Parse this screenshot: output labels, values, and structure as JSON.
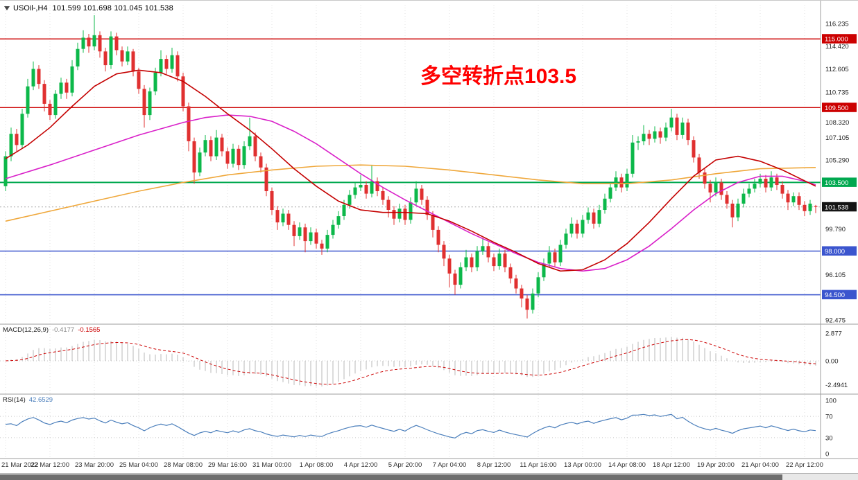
{
  "header": {
    "symbol_period": "USOil-,H4",
    "ohlc_text": "101.599 101.698 101.045 101.538"
  },
  "annotation": {
    "text": "多空转折点103.5",
    "color": "#ff0000"
  },
  "chart_data": {
    "type": "candlestick",
    "symbol": "USOil-",
    "timeframe": "H4",
    "bars_per_label": 8,
    "x_labels": [
      "21 Mar 2022",
      "22 Mar 12:00",
      "23 Mar 20:00",
      "25 Mar 04:00",
      "28 Mar 08:00",
      "29 Mar 16:00",
      "31 Mar 00:00",
      "1 Apr 08:00",
      "4 Apr 12:00",
      "5 Apr 20:00",
      "7 Apr 04:00",
      "8 Apr 12:00",
      "11 Apr 16:00",
      "13 Apr 00:00",
      "14 Apr 08:00",
      "18 Apr 12:00",
      "19 Apr 20:00",
      "21 Apr 04:00",
      "22 Apr 12:00"
    ],
    "up_color": "#0cb84a",
    "down_color": "#e03030",
    "levels": [
      {
        "price": 115.0,
        "color": "#cc0000",
        "width": 1.4,
        "style": "solid"
      },
      {
        "price": 109.5,
        "color": "#cc0000",
        "width": 1.4,
        "style": "solid"
      },
      {
        "price": 103.5,
        "color": "#00a84f",
        "width": 2,
        "style": "solid"
      },
      {
        "price": 98.0,
        "color": "#3b55ce",
        "width": 1.6,
        "style": "solid"
      },
      {
        "price": 94.5,
        "color": "#3b55ce",
        "width": 1.6,
        "style": "solid"
      },
      {
        "price": 101.538,
        "color": "#aaaaaa",
        "width": 1,
        "style": "dotted"
      }
    ],
    "y_axis": {
      "plain_labels": [
        "116.235",
        "114.420",
        "112.605",
        "110.735",
        "108.320",
        "107.105",
        "105.290",
        "99.790",
        "96.105",
        "92.475"
      ],
      "badges": [
        {
          "text": "115.000",
          "price": 115.0,
          "color": "#cc0000"
        },
        {
          "text": "109.500",
          "price": 109.5,
          "color": "#cc0000"
        },
        {
          "text": "103.500",
          "price": 103.5,
          "color": "#00a84f"
        },
        {
          "text": "101.538",
          "price": 101.538,
          "color": "#141414"
        },
        {
          "text": "98.000",
          "price": 98.0,
          "color": "#3b55ce"
        },
        {
          "text": "94.500",
          "price": 94.5,
          "color": "#3b55ce"
        }
      ]
    },
    "moving_averages": [
      {
        "name": "ma-slow-orange",
        "color": "#efa73a",
        "points": [
          [
            0,
            100.4
          ],
          [
            8,
            101.2
          ],
          [
            16,
            102.0
          ],
          [
            24,
            102.8
          ],
          [
            32,
            103.5
          ],
          [
            40,
            104.1
          ],
          [
            48,
            104.5
          ],
          [
            56,
            104.8
          ],
          [
            64,
            104.9
          ],
          [
            72,
            104.8
          ],
          [
            80,
            104.5
          ],
          [
            88,
            104.1
          ],
          [
            96,
            103.7
          ],
          [
            104,
            103.4
          ],
          [
            112,
            103.4
          ],
          [
            120,
            103.7
          ],
          [
            128,
            104.2
          ],
          [
            136,
            104.6
          ],
          [
            146,
            104.7
          ]
        ]
      },
      {
        "name": "ma-mid-magenta",
        "color": "#d920c9",
        "points": [
          [
            0,
            103.8
          ],
          [
            8,
            104.9
          ],
          [
            16,
            106.1
          ],
          [
            24,
            107.3
          ],
          [
            32,
            108.3
          ],
          [
            36,
            108.7
          ],
          [
            40,
            108.9
          ],
          [
            44,
            108.8
          ],
          [
            48,
            108.4
          ],
          [
            52,
            107.6
          ],
          [
            56,
            106.6
          ],
          [
            60,
            105.4
          ],
          [
            64,
            104.2
          ],
          [
            68,
            103.1
          ],
          [
            72,
            102.1
          ],
          [
            76,
            101.2
          ],
          [
            80,
            100.3
          ],
          [
            84,
            99.4
          ],
          [
            88,
            98.6
          ],
          [
            92,
            97.8
          ],
          [
            96,
            97.1
          ],
          [
            100,
            96.6
          ],
          [
            104,
            96.4
          ],
          [
            108,
            96.6
          ],
          [
            112,
            97.3
          ],
          [
            116,
            98.4
          ],
          [
            120,
            99.8
          ],
          [
            124,
            101.3
          ],
          [
            128,
            102.6
          ],
          [
            132,
            103.5
          ],
          [
            136,
            104.0
          ],
          [
            140,
            104.0
          ],
          [
            144,
            103.6
          ],
          [
            146,
            103.3
          ]
        ]
      },
      {
        "name": "ma-fast-red",
        "color": "#c40000",
        "points": [
          [
            0,
            105.4
          ],
          [
            4,
            106.5
          ],
          [
            8,
            107.9
          ],
          [
            12,
            109.6
          ],
          [
            16,
            111.2
          ],
          [
            20,
            112.2
          ],
          [
            24,
            112.5
          ],
          [
            28,
            112.3
          ],
          [
            32,
            111.6
          ],
          [
            36,
            110.4
          ],
          [
            40,
            109.0
          ],
          [
            44,
            107.7
          ],
          [
            48,
            106.2
          ],
          [
            52,
            104.6
          ],
          [
            56,
            103.2
          ],
          [
            60,
            102.0
          ],
          [
            64,
            101.3
          ],
          [
            68,
            101.1
          ],
          [
            72,
            101.1
          ],
          [
            76,
            101.0
          ],
          [
            80,
            100.4
          ],
          [
            84,
            99.6
          ],
          [
            88,
            98.7
          ],
          [
            92,
            97.9
          ],
          [
            96,
            97.0
          ],
          [
            100,
            96.4
          ],
          [
            104,
            96.5
          ],
          [
            108,
            97.3
          ],
          [
            112,
            98.6
          ],
          [
            116,
            100.3
          ],
          [
            120,
            102.2
          ],
          [
            124,
            104.0
          ],
          [
            128,
            105.3
          ],
          [
            132,
            105.6
          ],
          [
            136,
            105.2
          ],
          [
            140,
            104.5
          ],
          [
            146,
            103.2
          ]
        ]
      }
    ],
    "candles": [
      [
        103.2,
        106.0,
        102.8,
        105.6
      ],
      [
        105.6,
        107.9,
        105.2,
        107.4
      ],
      [
        107.4,
        107.8,
        106.0,
        106.5
      ],
      [
        106.5,
        109.4,
        106.2,
        109.0
      ],
      [
        109.0,
        111.8,
        108.7,
        111.2
      ],
      [
        111.2,
        113.2,
        110.9,
        112.6
      ],
      [
        112.6,
        112.9,
        111.0,
        111.4
      ],
      [
        111.4,
        111.7,
        109.2,
        109.8
      ],
      [
        109.8,
        110.1,
        108.5,
        108.9
      ],
      [
        108.9,
        110.9,
        108.6,
        110.6
      ],
      [
        110.6,
        111.9,
        110.2,
        111.5
      ],
      [
        111.5,
        111.8,
        110.2,
        110.7
      ],
      [
        110.7,
        113.3,
        110.4,
        112.8
      ],
      [
        112.8,
        114.7,
        112.5,
        114.2
      ],
      [
        114.2,
        115.7,
        113.9,
        115.1
      ],
      [
        115.1,
        115.4,
        113.9,
        114.4
      ],
      [
        114.4,
        116.9,
        114.1,
        115.3
      ],
      [
        115.3,
        115.6,
        113.5,
        114.0
      ],
      [
        114.0,
        114.3,
        112.4,
        112.9
      ],
      [
        112.9,
        115.6,
        112.6,
        115.2
      ],
      [
        115.2,
        115.5,
        113.7,
        114.1
      ],
      [
        114.1,
        114.4,
        112.8,
        113.2
      ],
      [
        113.2,
        114.4,
        112.9,
        114.0
      ],
      [
        114.0,
        114.2,
        112.0,
        112.4
      ],
      [
        112.4,
        112.7,
        110.6,
        111.0
      ],
      [
        111.0,
        111.3,
        107.9,
        108.9
      ],
      [
        108.9,
        111.1,
        108.5,
        110.8
      ],
      [
        110.8,
        112.7,
        110.5,
        112.3
      ],
      [
        112.3,
        114.1,
        112.0,
        113.4
      ],
      [
        113.4,
        113.7,
        112.2,
        112.6
      ],
      [
        112.6,
        114.3,
        112.3,
        113.7
      ],
      [
        113.7,
        114.0,
        111.6,
        112.0
      ],
      [
        112.0,
        112.3,
        109.2,
        109.6
      ],
      [
        109.6,
        109.9,
        106.0,
        106.8
      ],
      [
        106.8,
        107.1,
        103.4,
        104.3
      ],
      [
        104.3,
        106.3,
        104.0,
        105.9
      ],
      [
        105.9,
        107.3,
        105.6,
        106.9
      ],
      [
        106.9,
        107.2,
        105.2,
        105.6
      ],
      [
        105.6,
        107.7,
        105.3,
        107.1
      ],
      [
        107.1,
        107.4,
        105.6,
        106.0
      ],
      [
        106.0,
        106.3,
        104.6,
        105.0
      ],
      [
        105.0,
        106.6,
        104.7,
        106.2
      ],
      [
        106.2,
        106.5,
        104.5,
        104.9
      ],
      [
        104.9,
        106.8,
        104.6,
        106.4
      ],
      [
        106.4,
        108.7,
        106.1,
        107.2
      ],
      [
        107.2,
        107.5,
        105.2,
        105.6
      ],
      [
        105.6,
        105.9,
        104.3,
        104.7
      ],
      [
        104.7,
        105.0,
        102.4,
        102.8
      ],
      [
        102.8,
        103.1,
        100.9,
        101.3
      ],
      [
        101.3,
        101.6,
        99.7,
        100.3
      ],
      [
        100.3,
        101.4,
        100.0,
        101.0
      ],
      [
        101.0,
        101.3,
        99.7,
        100.1
      ],
      [
        100.1,
        100.4,
        98.4,
        99.2
      ],
      [
        99.2,
        100.3,
        98.9,
        99.9
      ],
      [
        99.9,
        100.2,
        97.9,
        98.8
      ],
      [
        98.8,
        99.9,
        98.5,
        99.5
      ],
      [
        99.5,
        99.8,
        98.2,
        98.6
      ],
      [
        98.6,
        98.9,
        97.7,
        98.2
      ],
      [
        98.2,
        99.7,
        97.9,
        99.3
      ],
      [
        99.3,
        100.5,
        99.0,
        100.1
      ],
      [
        100.1,
        101.2,
        99.8,
        100.8
      ],
      [
        100.8,
        102.1,
        100.5,
        101.7
      ],
      [
        101.7,
        102.9,
        101.4,
        102.5
      ],
      [
        102.5,
        103.5,
        102.2,
        103.1
      ],
      [
        103.1,
        104.1,
        102.8,
        103.3
      ],
      [
        103.3,
        103.6,
        102.2,
        102.6
      ],
      [
        102.6,
        104.9,
        102.3,
        103.6
      ],
      [
        103.6,
        103.9,
        102.4,
        102.8
      ],
      [
        102.8,
        103.1,
        101.7,
        102.1
      ],
      [
        102.1,
        102.4,
        100.7,
        101.3
      ],
      [
        101.3,
        101.6,
        100.1,
        100.6
      ],
      [
        100.6,
        101.8,
        100.3,
        101.4
      ],
      [
        101.4,
        101.7,
        100.1,
        100.5
      ],
      [
        100.5,
        102.3,
        100.2,
        101.9
      ],
      [
        101.9,
        103.6,
        101.6,
        103.0
      ],
      [
        103.0,
        103.3,
        101.7,
        102.1
      ],
      [
        102.1,
        102.4,
        100.5,
        100.9
      ],
      [
        100.9,
        101.2,
        99.1,
        99.7
      ],
      [
        99.7,
        100.0,
        97.9,
        98.5
      ],
      [
        98.5,
        98.8,
        96.8,
        97.4
      ],
      [
        97.4,
        97.7,
        95.1,
        96.2
      ],
      [
        96.2,
        96.5,
        94.5,
        95.3
      ],
      [
        95.3,
        97.1,
        95.0,
        96.7
      ],
      [
        96.7,
        98.1,
        96.4,
        97.5
      ],
      [
        97.5,
        97.8,
        96.3,
        96.7
      ],
      [
        96.7,
        98.4,
        96.4,
        98.0
      ],
      [
        98.0,
        99.0,
        97.7,
        98.4
      ],
      [
        98.4,
        98.7,
        97.1,
        97.5
      ],
      [
        97.5,
        97.8,
        96.4,
        96.8
      ],
      [
        96.8,
        98.2,
        96.5,
        97.8
      ],
      [
        97.8,
        98.1,
        96.3,
        96.7
      ],
      [
        96.7,
        97.0,
        95.4,
        95.8
      ],
      [
        95.8,
        96.1,
        94.6,
        95.0
      ],
      [
        95.0,
        95.3,
        93.5,
        94.2
      ],
      [
        94.2,
        94.5,
        92.6,
        93.3
      ],
      [
        93.3,
        95.0,
        93.0,
        94.6
      ],
      [
        94.6,
        96.3,
        94.3,
        95.9
      ],
      [
        95.9,
        97.4,
        95.6,
        97.0
      ],
      [
        97.0,
        98.4,
        96.7,
        97.9
      ],
      [
        97.9,
        98.2,
        96.7,
        97.1
      ],
      [
        97.1,
        98.9,
        96.8,
        98.5
      ],
      [
        98.5,
        99.8,
        98.2,
        99.4
      ],
      [
        99.4,
        100.7,
        99.1,
        100.2
      ],
      [
        100.2,
        100.5,
        99.0,
        99.4
      ],
      [
        99.4,
        100.9,
        99.1,
        100.5
      ],
      [
        100.5,
        101.5,
        100.2,
        101.1
      ],
      [
        101.1,
        101.4,
        99.8,
        100.2
      ],
      [
        100.2,
        101.7,
        99.9,
        101.3
      ],
      [
        101.3,
        102.6,
        101.0,
        102.2
      ],
      [
        102.2,
        103.5,
        101.9,
        103.1
      ],
      [
        103.1,
        104.4,
        102.8,
        103.9
      ],
      [
        103.9,
        104.2,
        102.7,
        103.1
      ],
      [
        103.1,
        104.6,
        102.8,
        104.2
      ],
      [
        104.2,
        107.3,
        103.9,
        106.7
      ],
      [
        106.7,
        107.2,
        106.1,
        106.8
      ],
      [
        106.8,
        108.1,
        106.5,
        107.4
      ],
      [
        107.4,
        107.7,
        106.5,
        107.0
      ],
      [
        107.0,
        108.0,
        106.7,
        107.6
      ],
      [
        107.6,
        107.9,
        106.6,
        107.1
      ],
      [
        107.1,
        108.3,
        106.8,
        107.9
      ],
      [
        107.9,
        109.4,
        107.6,
        108.7
      ],
      [
        108.7,
        109.0,
        106.9,
        107.3
      ],
      [
        107.3,
        108.7,
        107.0,
        108.3
      ],
      [
        108.3,
        108.6,
        106.5,
        106.9
      ],
      [
        106.9,
        107.2,
        105.1,
        105.5
      ],
      [
        105.5,
        105.8,
        103.8,
        104.3
      ],
      [
        104.3,
        104.6,
        103.0,
        103.4
      ],
      [
        103.4,
        103.7,
        101.9,
        102.7
      ],
      [
        102.7,
        103.9,
        102.4,
        103.5
      ],
      [
        103.5,
        103.8,
        102.1,
        102.5
      ],
      [
        102.5,
        102.8,
        101.4,
        101.8
      ],
      [
        101.8,
        102.1,
        99.9,
        100.7
      ],
      [
        100.7,
        102.2,
        100.4,
        101.8
      ],
      [
        101.8,
        103.0,
        101.5,
        102.6
      ],
      [
        102.6,
        103.4,
        102.3,
        103.0
      ],
      [
        103.0,
        103.8,
        102.7,
        103.4
      ],
      [
        103.4,
        104.2,
        103.1,
        103.8
      ],
      [
        103.8,
        104.1,
        102.7,
        103.1
      ],
      [
        103.1,
        104.4,
        102.8,
        103.9
      ],
      [
        103.9,
        104.2,
        102.9,
        103.3
      ],
      [
        103.3,
        103.6,
        102.2,
        102.6
      ],
      [
        102.6,
        102.9,
        101.3,
        101.9
      ],
      [
        101.9,
        102.7,
        101.6,
        102.4
      ],
      [
        102.4,
        102.7,
        101.3,
        101.7
      ],
      [
        101.7,
        102.0,
        100.8,
        101.2
      ],
      [
        101.2,
        102.1,
        100.9,
        101.8
      ],
      [
        101.599,
        101.698,
        101.045,
        101.538
      ]
    ],
    "indicators": {
      "macd": {
        "label": "MACD(12,26,9)",
        "params": [
          12,
          26,
          9
        ],
        "values_text": [
          "-0.4177",
          "-0.1565"
        ],
        "axis_labels": [
          "2.877",
          "0.00",
          "-2.4941"
        ],
        "histogram_color": "#b9b9b9",
        "signal_color": "#cc0000"
      },
      "rsi": {
        "label": "RSI(14)",
        "period": 14,
        "value_text": "42.6529",
        "axis_labels": [
          "100",
          "70",
          "30",
          "0"
        ],
        "levels": [
          70,
          30
        ],
        "color": "#4a7ebb"
      }
    }
  }
}
